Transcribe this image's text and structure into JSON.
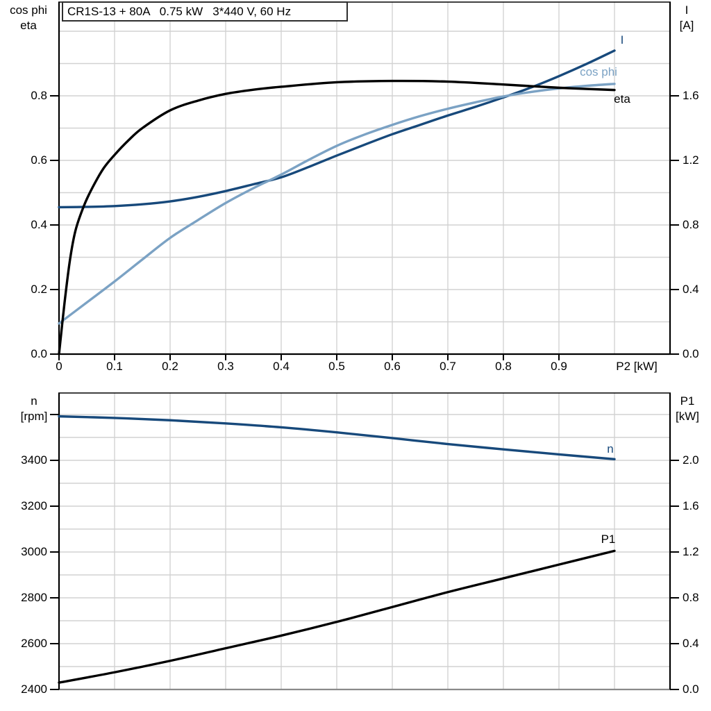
{
  "page": {
    "background": "#ffffff"
  },
  "chart_data": [
    {
      "type": "line",
      "position": "top",
      "title": "CR1S-13 + 80A   0.75 kW   3*440 V, 60 Hz",
      "x_axis": {
        "label": "P2 [kW]",
        "min": 0,
        "max": 1.1,
        "grid_step": 0.1,
        "tick_values": [
          0,
          0.1,
          0.2,
          0.3,
          0.4,
          0.5,
          0.6,
          0.7,
          0.8,
          0.9
        ],
        "tick_labels": [
          "0",
          "0.1",
          "0.2",
          "0.3",
          "0.4",
          "0.5",
          "0.6",
          "0.7",
          "0.8",
          "0.9"
        ]
      },
      "y_left": {
        "label_lines": [
          "cos phi",
          "eta"
        ],
        "min": 0,
        "max": 1.0903,
        "grid_step": 0.1,
        "tick_values": [
          0,
          0.2,
          0.4,
          0.6,
          0.8
        ],
        "tick_labels": [
          "0.0",
          "0.2",
          "0.4",
          "0.6",
          "0.8"
        ]
      },
      "y_right": {
        "label_lines": [
          "I",
          "[A]"
        ],
        "min": 0,
        "max": 2.1806,
        "tick_values": [
          0,
          0.4,
          0.8,
          1.2,
          1.6
        ],
        "tick_labels": [
          "0.0",
          "0.4",
          "0.8",
          "1.2",
          "1.6"
        ]
      },
      "grid": true,
      "legend_position": "inline-curve-labels",
      "series": [
        {
          "name": "I",
          "axis": "right",
          "color": "#17497B",
          "x": [
            0,
            0.05,
            0.1,
            0.15,
            0.2,
            0.25,
            0.3,
            0.35,
            0.4,
            0.45,
            0.5,
            0.55,
            0.6,
            0.65,
            0.7,
            0.75,
            0.8,
            0.85,
            0.9,
            0.95,
            1.0
          ],
          "y": [
            0.91,
            0.912,
            0.917,
            0.928,
            0.946,
            0.974,
            1.01,
            1.052,
            1.095,
            1.16,
            1.23,
            1.297,
            1.362,
            1.42,
            1.478,
            1.532,
            1.59,
            1.652,
            1.722,
            1.798,
            1.88
          ]
        },
        {
          "name": "cos phi",
          "axis": "left",
          "color": "#7BA2C4",
          "x": [
            0,
            0.05,
            0.1,
            0.15,
            0.2,
            0.25,
            0.3,
            0.35,
            0.4,
            0.45,
            0.5,
            0.55,
            0.6,
            0.65,
            0.7,
            0.75,
            0.8,
            0.85,
            0.9,
            0.95,
            1.0
          ],
          "y": [
            0.095,
            0.16,
            0.225,
            0.293,
            0.36,
            0.415,
            0.468,
            0.514,
            0.556,
            0.602,
            0.645,
            0.68,
            0.71,
            0.737,
            0.76,
            0.78,
            0.798,
            0.812,
            0.823,
            0.831,
            0.837
          ]
        },
        {
          "name": "eta",
          "axis": "left",
          "color": "#000000",
          "x": [
            0,
            0.01,
            0.02,
            0.03,
            0.045,
            0.06,
            0.08,
            0.1,
            0.125,
            0.15,
            0.2,
            0.25,
            0.3,
            0.35,
            0.4,
            0.5,
            0.6,
            0.7,
            0.8,
            0.9,
            1.0
          ],
          "y": [
            0.0,
            0.16,
            0.295,
            0.385,
            0.46,
            0.515,
            0.575,
            0.617,
            0.662,
            0.7,
            0.755,
            0.785,
            0.806,
            0.819,
            0.828,
            0.842,
            0.846,
            0.844,
            0.835,
            0.825,
            0.818
          ]
        }
      ]
    },
    {
      "type": "line",
      "position": "bottom",
      "x_axis": {
        "label": "",
        "min": 0,
        "max": 1.1,
        "grid_step": 0.1,
        "tick_values": [],
        "tick_labels": []
      },
      "y_left": {
        "label_lines": [
          "n",
          "[rpm]"
        ],
        "min": 2400,
        "max": 3693.9,
        "grid_step": 100,
        "tick_values": [
          2400,
          2600,
          2800,
          3000,
          3200,
          3400
        ],
        "tick_labels": [
          "2400",
          "2600",
          "2800",
          "3000",
          "3200",
          "3400"
        ],
        "extra_tick_values": [
          3600
        ]
      },
      "y_right": {
        "label_lines": [
          "P1",
          "[kW]"
        ],
        "min": 0,
        "max": 2.588,
        "tick_values": [
          0,
          0.4,
          0.8,
          1.2,
          1.6,
          2.0
        ],
        "tick_labels": [
          "0.0",
          "0.4",
          "0.8",
          "1.2",
          "1.6",
          "2.0"
        ]
      },
      "grid": true,
      "legend_position": "inline-curve-labels",
      "series": [
        {
          "name": "n",
          "axis": "left",
          "color": "#17497B",
          "x": [
            0,
            0.1,
            0.2,
            0.3,
            0.4,
            0.5,
            0.6,
            0.7,
            0.8,
            0.9,
            1.0
          ],
          "y": [
            3592,
            3585,
            3575,
            3561,
            3544,
            3522,
            3497,
            3471,
            3448,
            3426,
            3405
          ]
        },
        {
          "name": "P1",
          "axis": "right",
          "color": "#000000",
          "x": [
            0,
            0.1,
            0.2,
            0.3,
            0.4,
            0.5,
            0.6,
            0.7,
            0.8,
            0.9,
            1.0
          ],
          "y": [
            0.06,
            0.15,
            0.25,
            0.36,
            0.47,
            0.59,
            0.72,
            0.85,
            0.97,
            1.09,
            1.21
          ]
        }
      ]
    }
  ],
  "colors": {
    "dark_blue": "#17497B",
    "light_blue": "#7BA2C4",
    "black": "#000000",
    "grid": "#D2D2D2",
    "bottom_axis_gray": "#8A8A8A"
  }
}
